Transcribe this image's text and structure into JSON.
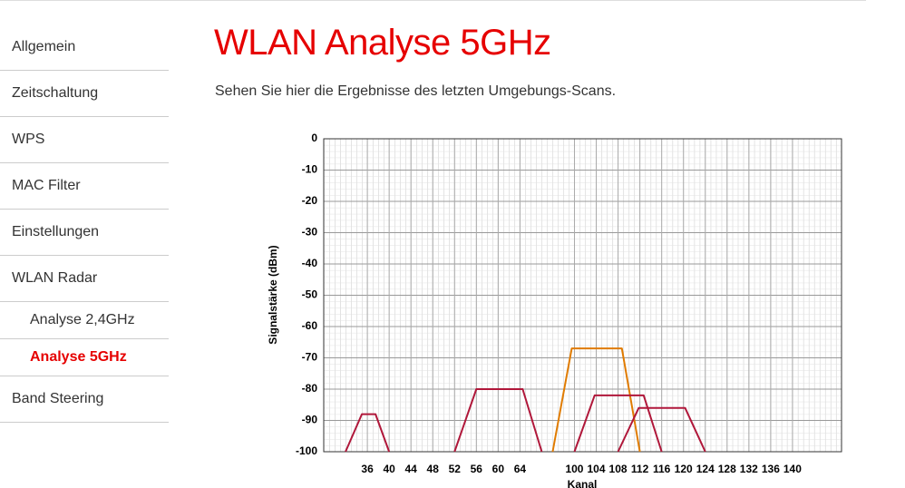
{
  "nav": {
    "items": [
      {
        "label": "Allgemein"
      },
      {
        "label": "Zeitschaltung"
      },
      {
        "label": "WPS"
      },
      {
        "label": "MAC Filter"
      },
      {
        "label": "Einstellungen"
      },
      {
        "label": "WLAN Radar"
      },
      {
        "label": "Analyse 2,4GHz",
        "indent": true
      },
      {
        "label": "Analyse 5GHz",
        "indent": true,
        "active": true
      },
      {
        "label": "Band Steering"
      }
    ]
  },
  "header": {
    "title": "WLAN Analyse 5GHz",
    "intro": "Sehen Sie hier die Ergebnisse des letzten Umgebungs-Scans."
  },
  "chart_data": {
    "type": "line",
    "y_label": "Signalstärke (dBm)",
    "x_label": "Kanal",
    "xlim": [
      28,
      149
    ],
    "x_break": [
      64,
      100
    ],
    "xticks": [
      36,
      40,
      44,
      48,
      52,
      56,
      60,
      64,
      100,
      104,
      108,
      112,
      116,
      120,
      124,
      128,
      132,
      136,
      140
    ],
    "ylim": [
      -100,
      0
    ],
    "yticks": [
      0,
      -10,
      -20,
      -30,
      -40,
      -50,
      -60,
      -70,
      -80,
      -90,
      -100
    ],
    "grid": true,
    "series": [
      {
        "color": "#b0173a",
        "x": [
          32,
          35,
          37.5,
          40
        ],
        "values": [
          -100,
          -88,
          -88,
          -100
        ]
      },
      {
        "color": "#b0173a",
        "x": [
          52,
          56,
          64.5,
          68
        ],
        "values": [
          -100,
          -80,
          -80,
          -100
        ]
      },
      {
        "color": "#e07b00",
        "x": [
          96,
          99.5,
          108.7,
          112
        ],
        "values": [
          -100,
          -67,
          -67,
          -100
        ]
      },
      {
        "color": "#b0173a",
        "x": [
          100,
          103.7,
          112.7,
          116
        ],
        "values": [
          -100,
          -82,
          -82,
          -100
        ]
      },
      {
        "color": "#b0173a",
        "x": [
          108,
          111.8,
          120.3,
          124
        ],
        "values": [
          -100,
          -86,
          -86,
          -100
        ]
      }
    ]
  }
}
